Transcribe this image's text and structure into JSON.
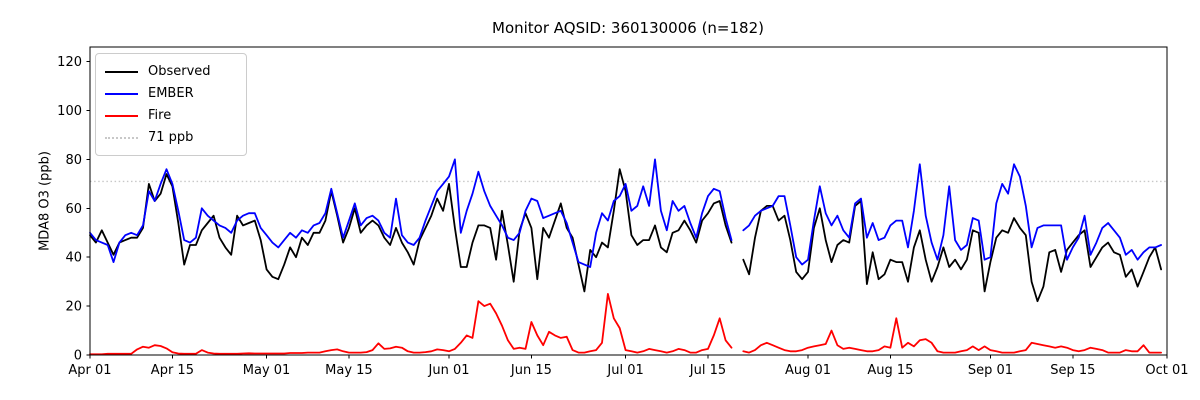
{
  "chart_data": {
    "type": "line",
    "title": "Monitor AQSID: 360130006 (n=182)",
    "xlabel": "",
    "ylabel": "MDA8 O3 (ppb)",
    "x_unit": "day index from Apr 01 (daily cadence, Apr 01 - Sep 30; Jul 20 missing)",
    "ylim": [
      0,
      126
    ],
    "x_range_days": [
      0,
      183
    ],
    "grid": false,
    "legend_position": "upper-left",
    "y_ticks": [
      0,
      20,
      40,
      60,
      80,
      100,
      120
    ],
    "x_ticks": [
      {
        "day": 0,
        "label": "Apr 01"
      },
      {
        "day": 14,
        "label": "Apr 15"
      },
      {
        "day": 30,
        "label": "May 01"
      },
      {
        "day": 44,
        "label": "May 15"
      },
      {
        "day": 61,
        "label": "Jun 01"
      },
      {
        "day": 75,
        "label": "Jun 15"
      },
      {
        "day": 91,
        "label": "Jul 01"
      },
      {
        "day": 105,
        "label": "Jul 15"
      },
      {
        "day": 122,
        "label": "Aug 01"
      },
      {
        "day": 136,
        "label": "Aug 15"
      },
      {
        "day": 153,
        "label": "Sep 01"
      },
      {
        "day": 167,
        "label": "Sep 15"
      },
      {
        "day": 183,
        "label": "Oct 01"
      }
    ],
    "threshold": {
      "value": 71,
      "label": "71 ppb",
      "color": "#c8c8c8",
      "style": "dotted"
    },
    "legend": [
      {
        "label": "Observed",
        "color": "#000000",
        "style": "solid"
      },
      {
        "label": "EMBER",
        "color": "#0000ff",
        "style": "solid"
      },
      {
        "label": "Fire",
        "color": "#ff0000",
        "style": "solid"
      },
      {
        "label": "71 ppb",
        "color": "#c8c8c8",
        "style": "dotted"
      }
    ],
    "series": [
      {
        "name": "Observed",
        "color": "#000000",
        "values": [
          49,
          46,
          51,
          46,
          41,
          46,
          47,
          48,
          48,
          52,
          70,
          63,
          66,
          74,
          69,
          54,
          37,
          45,
          45,
          51,
          54,
          57,
          48,
          44,
          41,
          57,
          53,
          54,
          55,
          47,
          35,
          32,
          31,
          37,
          44,
          40,
          48,
          45,
          50,
          50,
          55,
          67,
          57,
          46,
          52,
          60,
          50,
          53,
          55,
          53,
          48,
          45,
          52,
          46,
          42,
          37,
          47,
          52,
          57,
          64,
          59,
          70,
          52,
          36,
          36,
          46,
          53,
          53,
          52,
          39,
          59,
          45,
          30,
          51,
          58,
          52,
          31,
          52,
          48,
          55,
          62,
          52,
          48,
          37,
          26,
          43,
          40,
          46,
          44,
          59,
          76,
          67,
          49,
          45,
          47,
          47,
          53,
          44,
          42,
          50,
          51,
          55,
          51,
          46,
          55,
          58,
          62,
          63,
          53,
          46,
          null,
          39,
          33,
          48,
          59,
          61,
          61,
          55,
          57,
          47,
          34,
          31,
          34,
          52,
          60,
          47,
          38,
          45,
          47,
          46,
          61,
          63,
          29,
          42,
          31,
          33,
          39,
          38,
          38,
          30,
          44,
          51,
          39,
          30,
          36,
          44,
          36,
          39,
          35,
          39,
          51,
          50,
          26,
          38,
          48,
          51,
          50,
          56,
          52,
          49,
          30,
          22,
          28,
          42,
          43,
          34,
          43,
          46,
          49,
          51,
          36,
          40,
          44,
          46,
          42,
          41,
          32,
          35,
          28,
          34,
          40,
          44,
          35
        ]
      },
      {
        "name": "EMBER",
        "color": "#0000ff",
        "values": [
          50,
          47,
          46,
          45,
          38,
          46,
          49,
          50,
          49,
          53,
          67,
          63,
          70,
          76,
          70,
          59,
          47,
          46,
          48,
          60,
          57,
          55,
          53,
          52,
          50,
          55,
          57,
          58,
          58,
          52,
          49,
          46,
          44,
          47,
          50,
          48,
          51,
          50,
          53,
          54,
          58,
          68,
          58,
          48,
          55,
          62,
          53,
          56,
          57,
          55,
          50,
          48,
          64,
          49,
          46,
          45,
          48,
          55,
          61,
          67,
          70,
          73,
          80,
          50,
          59,
          66,
          75,
          67,
          61,
          57,
          53,
          48,
          47,
          50,
          59,
          64,
          63,
          56,
          57,
          58,
          59,
          54,
          46,
          38,
          37,
          36,
          50,
          58,
          55,
          63,
          65,
          70,
          59,
          61,
          69,
          61,
          80,
          59,
          51,
          63,
          59,
          61,
          54,
          48,
          58,
          65,
          68,
          67,
          56,
          47,
          null,
          51,
          53,
          57,
          59,
          60,
          61,
          65,
          65,
          53,
          40,
          37,
          39,
          55,
          69,
          58,
          53,
          57,
          51,
          48,
          62,
          64,
          48,
          54,
          47,
          48,
          53,
          55,
          55,
          44,
          59,
          78,
          57,
          46,
          39,
          49,
          69,
          47,
          43,
          45,
          56,
          55,
          39,
          40,
          62,
          70,
          66,
          78,
          73,
          61,
          44,
          52,
          53,
          53,
          53,
          53,
          39,
          44,
          48,
          57,
          41,
          46,
          52,
          54,
          51,
          48,
          41,
          43,
          39,
          42,
          44,
          44,
          45
        ]
      },
      {
        "name": "Fire",
        "color": "#ff0000",
        "values": [
          0.3,
          0.3,
          0.3,
          0.5,
          0.5,
          0.5,
          0.5,
          0.5,
          2.3,
          3.4,
          3,
          4,
          3.7,
          2.7,
          1.1,
          0.6,
          0.5,
          0.5,
          0.5,
          2,
          1,
          0.6,
          0.5,
          0.5,
          0.5,
          0.5,
          0.6,
          0.7,
          0.6,
          0.6,
          0.6,
          0.6,
          0.6,
          0.6,
          0.8,
          0.8,
          0.8,
          1,
          1,
          1,
          1.5,
          2,
          2.3,
          1.5,
          1,
          1,
          1,
          1.2,
          2,
          4.8,
          2.5,
          2.7,
          3.4,
          3,
          1.5,
          1,
          1,
          1.2,
          1.5,
          2.3,
          2,
          1.5,
          2.5,
          5,
          8,
          7,
          22,
          20,
          21,
          17,
          12,
          6,
          2.5,
          3,
          2.5,
          13.5,
          8,
          4,
          9.5,
          8,
          7,
          7.5,
          2,
          1,
          1,
          1.5,
          2,
          5,
          25,
          15,
          11,
          2,
          1.5,
          1,
          1.5,
          2.5,
          2,
          1.5,
          1,
          1.5,
          2.5,
          2,
          1,
          1,
          2,
          2.5,
          8,
          15,
          6,
          3,
          null,
          1.5,
          1,
          2,
          4,
          5,
          4,
          3,
          2,
          1.5,
          1.5,
          2,
          3,
          3.5,
          4,
          4.5,
          10,
          4,
          2.5,
          3,
          2.5,
          2,
          1.5,
          1.5,
          2,
          3.5,
          3,
          15,
          3,
          5,
          3.5,
          6,
          6.5,
          5,
          1.5,
          1,
          1,
          1,
          1.5,
          2,
          3.5,
          2,
          3.5,
          2,
          1.5,
          1,
          1,
          1,
          1.5,
          2,
          5,
          4.5,
          4,
          3.5,
          3,
          3.5,
          3,
          2,
          1.5,
          2,
          3,
          2.5,
          2,
          1,
          1,
          1,
          2,
          1.5,
          1.5,
          4,
          1,
          1,
          1
        ]
      }
    ]
  }
}
